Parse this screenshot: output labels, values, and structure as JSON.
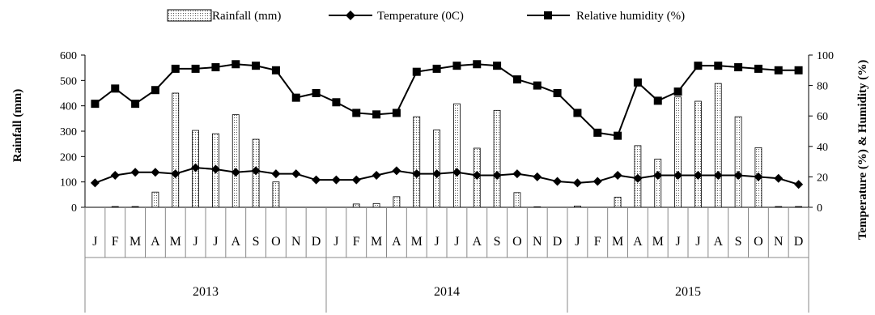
{
  "chart_data": {
    "type": "bar",
    "title": "",
    "legend": {
      "position": "top",
      "items": [
        "Rainfall (mm)",
        "Temperature (0C)",
        "Relative humidity (%)"
      ]
    },
    "categories": [
      "J",
      "F",
      "M",
      "A",
      "M",
      "J",
      "J",
      "A",
      "S",
      "O",
      "N",
      "D",
      "J",
      "F",
      "M",
      "A",
      "M",
      "J",
      "J",
      "A",
      "S",
      "O",
      "N",
      "D",
      "J",
      "F",
      "M",
      "A",
      "M",
      "J",
      "J",
      "A",
      "S",
      "O",
      "N",
      "D"
    ],
    "years": [
      "2013",
      "2014",
      "2015"
    ],
    "ylabel": "Rainfall (mm)",
    "y2label": "Temperature (%) & Humidity (%)",
    "ylim": [
      0,
      600
    ],
    "yticks": [
      0,
      100,
      200,
      300,
      400,
      500,
      600
    ],
    "y2lim": [
      0,
      100
    ],
    "y2ticks": [
      0,
      20,
      40,
      60,
      80,
      100
    ],
    "grid": false,
    "series": [
      {
        "name": "Rainfall (mm)",
        "type": "bar",
        "axis": "left",
        "values": [
          0,
          3,
          3,
          60,
          450,
          303,
          290,
          365,
          268,
          100,
          0,
          0,
          0,
          13,
          15,
          42,
          357,
          305,
          408,
          233,
          382,
          58,
          2,
          0,
          5,
          0,
          40,
          243,
          190,
          435,
          418,
          488,
          357,
          235,
          3,
          3
        ]
      },
      {
        "name": "Temperature (0C)",
        "type": "line",
        "axis": "right",
        "marker": "diamond",
        "values": [
          16,
          21,
          23,
          23,
          22,
          26,
          25,
          23,
          24,
          22,
          22,
          18,
          18,
          18,
          21,
          24,
          22,
          22,
          23,
          21,
          21,
          22,
          20,
          17,
          16,
          17,
          21,
          19,
          21,
          21,
          21,
          21,
          21,
          20,
          19,
          15
        ]
      },
      {
        "name": "Relative humidity (%)",
        "type": "line",
        "axis": "right",
        "marker": "square",
        "values": [
          68,
          78,
          68,
          77,
          91,
          91,
          92,
          94,
          93,
          90,
          72,
          75,
          69,
          62,
          61,
          62,
          89,
          91,
          93,
          94,
          93,
          84,
          80,
          75,
          62,
          49,
          47,
          82,
          70,
          76,
          93,
          93,
          92,
          91,
          90,
          90
        ]
      }
    ]
  }
}
